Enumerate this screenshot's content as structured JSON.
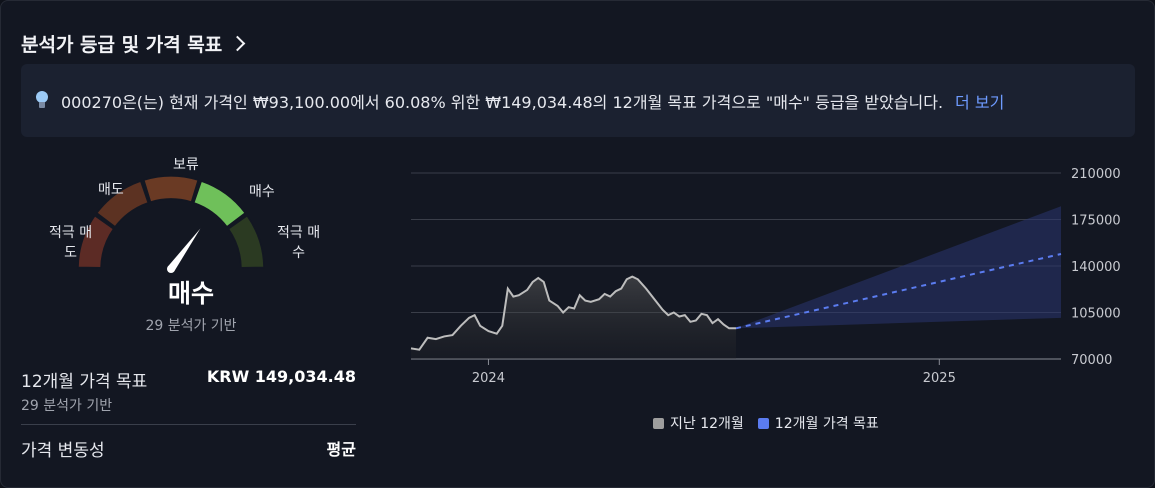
{
  "header": {
    "title": "분석가 등급 및 가격 목표"
  },
  "banner": {
    "text": "000270은(는) 현재 가격인 ₩93,100.00에서 60.08% 위한 ₩149,034.48의 12개월 목표 가격으로 \"매수\" 등급을 받았습니다.",
    "more": "더 보기"
  },
  "gauge": {
    "labels": {
      "strong_sell": "적극 매\n도",
      "sell": "매도",
      "hold": "보류",
      "buy": "매수",
      "strong_buy": "적극 매\n수"
    },
    "rating": "매수",
    "basis": "29 분석가 기반",
    "colors": [
      "#5c2b25",
      "#5c3222",
      "#6a3a24",
      "#6fc05a",
      "#2b3a22"
    ]
  },
  "target": {
    "label": "12개월 가격 목표",
    "value": "KRW 149,034.48",
    "basis": "29 분석가 기반"
  },
  "volatility": {
    "label": "가격 변동성",
    "value": "평균"
  },
  "legend": {
    "past": "지난 12개월",
    "target": "12개월 가격 목표",
    "past_color": "#9e9e9e",
    "target_color": "#5b7cf0"
  },
  "chart_data": {
    "type": "line",
    "y_ticks": [
      "210000",
      "175000",
      "140000",
      "105000",
      "70000"
    ],
    "ylim": [
      70000,
      210000
    ],
    "x_ticks": [
      "2024",
      "2025"
    ],
    "series": [
      {
        "name": "지난 12개월",
        "points": [
          [
            0,
            78000
          ],
          [
            6,
            77000
          ],
          [
            12,
            86000
          ],
          [
            18,
            85000
          ],
          [
            24,
            87000
          ],
          [
            30,
            88000
          ],
          [
            36,
            95000
          ],
          [
            42,
            101000
          ],
          [
            46,
            103000
          ],
          [
            50,
            95000
          ],
          [
            56,
            91000
          ],
          [
            62,
            89000
          ],
          [
            66,
            95000
          ],
          [
            70,
            123000
          ],
          [
            74,
            117000
          ],
          [
            78,
            118000
          ],
          [
            84,
            122000
          ],
          [
            88,
            128000
          ],
          [
            92,
            131000
          ],
          [
            96,
            128000
          ],
          [
            100,
            114000
          ],
          [
            106,
            110000
          ],
          [
            110,
            105000
          ],
          [
            114,
            109000
          ],
          [
            118,
            108000
          ],
          [
            122,
            118000
          ],
          [
            126,
            114000
          ],
          [
            130,
            113000
          ],
          [
            136,
            115000
          ],
          [
            140,
            119000
          ],
          [
            144,
            117000
          ],
          [
            148,
            121000
          ],
          [
            152,
            123000
          ],
          [
            156,
            130000
          ],
          [
            160,
            132000
          ],
          [
            164,
            130000
          ],
          [
            170,
            123000
          ],
          [
            176,
            115000
          ],
          [
            182,
            107000
          ],
          [
            186,
            103000
          ],
          [
            190,
            105000
          ],
          [
            194,
            102000
          ],
          [
            198,
            103000
          ],
          [
            202,
            98000
          ],
          [
            206,
            99000
          ],
          [
            210,
            104000
          ],
          [
            214,
            103000
          ],
          [
            218,
            97000
          ],
          [
            222,
            100000
          ],
          [
            226,
            96000
          ],
          [
            230,
            93100
          ],
          [
            235,
            93100
          ]
        ]
      },
      {
        "name": "12개월 가격 목표",
        "start": [
          235,
          93100
        ],
        "end": [
          470,
          149034.48
        ],
        "upper": 185000,
        "lower": 101000
      }
    ],
    "xlim": [
      0,
      470
    ]
  }
}
